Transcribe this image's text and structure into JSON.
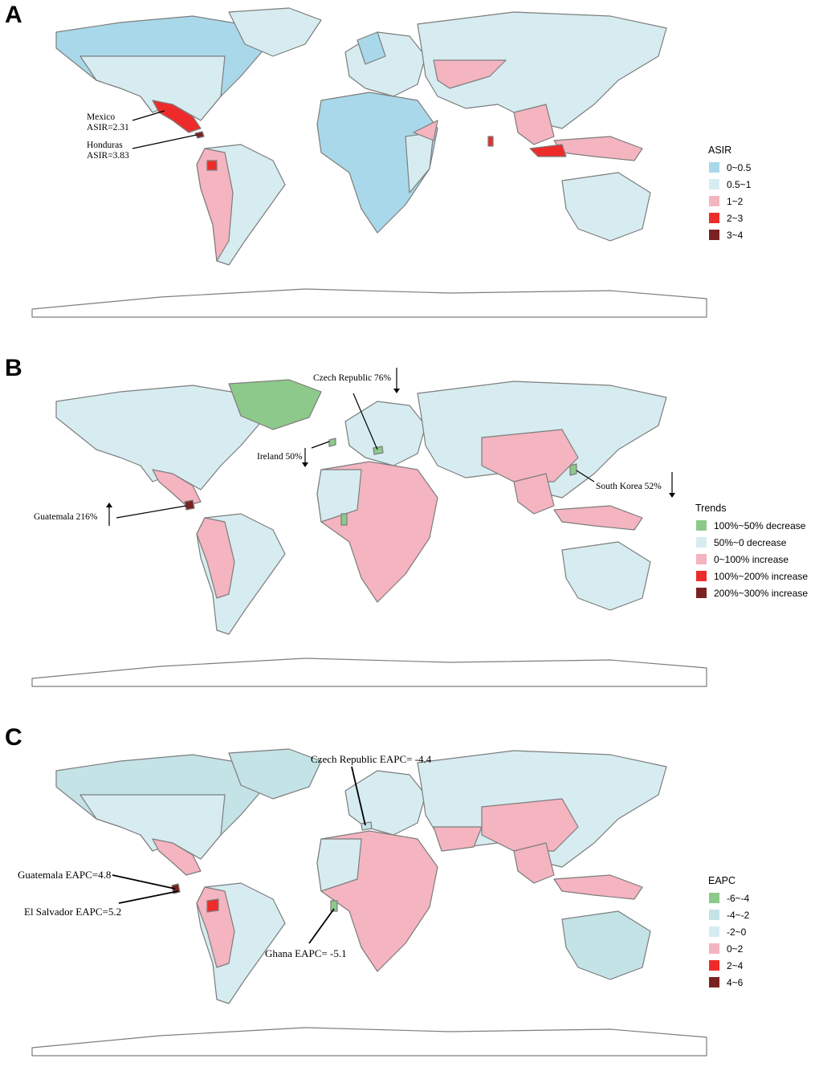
{
  "panels": [
    {
      "letter": "A",
      "legend": {
        "title": "ASIR",
        "items": [
          {
            "label": "0~0.5",
            "color": "#a9d8ea"
          },
          {
            "label": "0.5~1",
            "color": "#d6ecf0"
          },
          {
            "label": "1~2",
            "color": "#f4b4c0"
          },
          {
            "label": "2~3",
            "color": "#ee2b2b"
          },
          {
            "label": "3~4",
            "color": "#7a2222"
          }
        ]
      },
      "annotations": {
        "mexico_name": "Mexico",
        "mexico_value": "ASIR=2.31",
        "honduras_name": "Honduras",
        "honduras_value": "ASIR=3.83"
      }
    },
    {
      "letter": "B",
      "legend": {
        "title": "Trends",
        "items": [
          {
            "label": "100%~50% decrease",
            "color": "#8dc98a"
          },
          {
            "label": "50%~0 decrease",
            "color": "#d6ecf0"
          },
          {
            "label": "0~100% increase",
            "color": "#f4b4c0"
          },
          {
            "label": "100%~200% increase",
            "color": "#ee2b2b"
          },
          {
            "label": "200%~300% increase",
            "color": "#7a2222"
          }
        ]
      },
      "annotations": {
        "czech": "Czech Republic 76%",
        "ireland": "Ireland 50%",
        "south_korea": "South Korea 52%",
        "guatemala": "Guatemala  216%"
      }
    },
    {
      "letter": "C",
      "legend": {
        "title": "EAPC",
        "items": [
          {
            "label": "-6~-4",
            "color": "#8dc98a"
          },
          {
            "label": "-4~-2",
            "color": "#c3e3e6"
          },
          {
            "label": "-2~0",
            "color": "#d6ecf0"
          },
          {
            "label": "0~2",
            "color": "#f4b4c0"
          },
          {
            "label": "2~4",
            "color": "#ee2b2b"
          },
          {
            "label": "4~6",
            "color": "#7a2222"
          }
        ]
      },
      "annotations": {
        "czech": "Czech Republic EAPC= -4.4",
        "guatemala": "Guatemala EAPC=4.8",
        "el_salvador": "El Salvador EAPC=5.2",
        "ghana": "Ghana EAPC= -5.1"
      }
    }
  ]
}
